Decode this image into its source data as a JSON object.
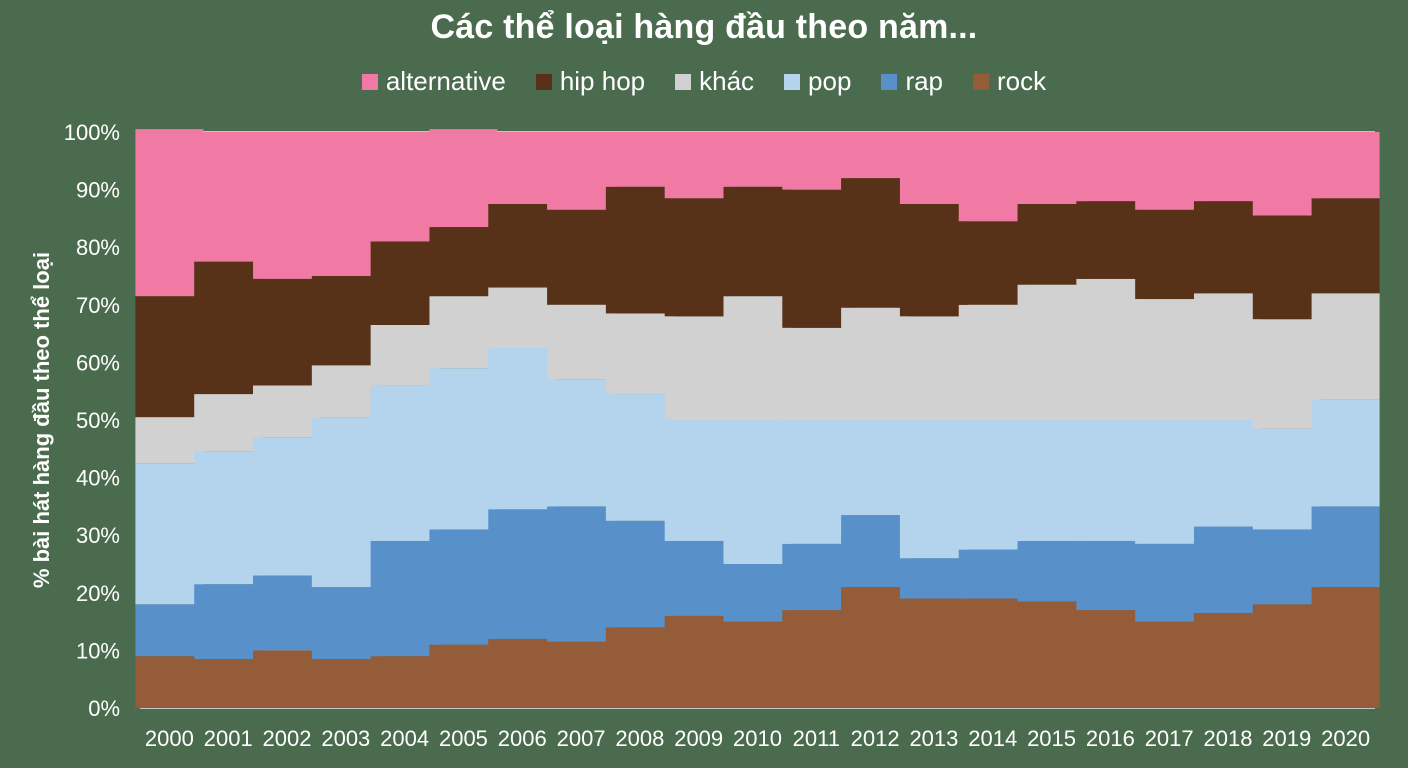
{
  "chart_data": {
    "type": "bar",
    "stacked": true,
    "title": "Các thể loại hàng đầu theo năm...",
    "ylabel": "% bài hát hàng đầu theo thể loại",
    "xlabel": "",
    "ylim": [
      0,
      100
    ],
    "yticks": [
      "0%",
      "10%",
      "20%",
      "30%",
      "40%",
      "50%",
      "60%",
      "70%",
      "80%",
      "90%",
      "100%"
    ],
    "grid": true,
    "legend_position": "top",
    "categories": [
      "2000",
      "2001",
      "2002",
      "2003",
      "2004",
      "2005",
      "2006",
      "2007",
      "2008",
      "2009",
      "2010",
      "2011",
      "2012",
      "2013",
      "2014",
      "2015",
      "2016",
      "2017",
      "2018",
      "2019",
      "2020"
    ],
    "series": [
      {
        "name": "rock",
        "color": "#945c39",
        "values": [
          9,
          8.5,
          10,
          8.5,
          9,
          11,
          12,
          11.5,
          14,
          16,
          15,
          17,
          21,
          19,
          19,
          18.5,
          17,
          15,
          16.5,
          18,
          21
        ]
      },
      {
        "name": "rap",
        "color": "#5890c9",
        "values": [
          9,
          13,
          13,
          12.5,
          20,
          20,
          22.5,
          23.5,
          18.5,
          13,
          10,
          11.5,
          12.5,
          7,
          8.5,
          10.5,
          12,
          13.5,
          15,
          13,
          14
        ]
      },
      {
        "name": "pop",
        "color": "#b4d3ed",
        "values": [
          24.5,
          23,
          24,
          29.5,
          27,
          28,
          28,
          22,
          22,
          21,
          25,
          21.5,
          16.5,
          24,
          22.5,
          21,
          21,
          21.5,
          18.5,
          17.5,
          18.5
        ]
      },
      {
        "name": "khác",
        "color": "#d1d1d1",
        "values": [
          8,
          10,
          9,
          9,
          10.5,
          12.5,
          10.5,
          13,
          14,
          18,
          21.5,
          16,
          19.5,
          18,
          20,
          23.5,
          24.5,
          21,
          22,
          19,
          18.5
        ]
      },
      {
        "name": "hip hop",
        "color": "#573218",
        "values": [
          21,
          23,
          18.5,
          15.5,
          14.5,
          12,
          14.5,
          16.5,
          22,
          20.5,
          19,
          24,
          22.5,
          19.5,
          14.5,
          14,
          13.5,
          15.5,
          16,
          18,
          16.5
        ]
      },
      {
        "name": "alternative",
        "color": "#f07aa3",
        "values": [
          29,
          22.5,
          25.5,
          25,
          19,
          17,
          12.5,
          13.5,
          9.5,
          11.5,
          9.5,
          10,
          8,
          12.5,
          15.5,
          12.5,
          12,
          13.5,
          12,
          14.5,
          11.5
        ]
      }
    ]
  },
  "legend_order": [
    "alternative",
    "hip hop",
    "khác",
    "pop",
    "rap",
    "rock"
  ]
}
